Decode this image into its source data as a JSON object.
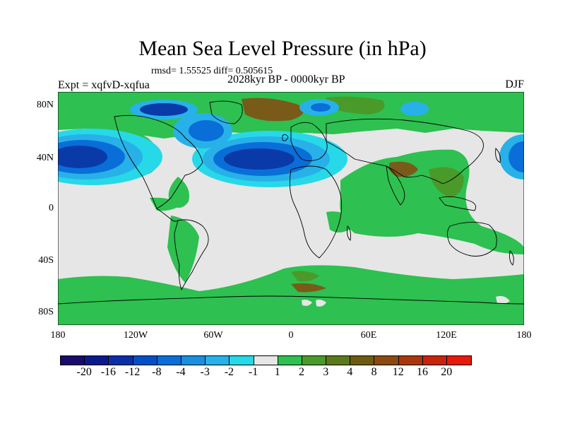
{
  "header": {
    "title": "Mean Sea Level Pressure (in hPa)",
    "stats": "rmsd= 1.55525 diff= 0.505615",
    "experiment": "Expt = xqfvD-xqfua",
    "period": "2028kyr BP - 0000kyr BP",
    "season": "DJF"
  },
  "axes": {
    "lat_labels": [
      "80N",
      "40N",
      "0",
      "40S",
      "80S"
    ],
    "lon_labels": [
      "180",
      "120W",
      "60W",
      "0",
      "60E",
      "120E",
      "180"
    ]
  },
  "colorbar": {
    "colors": [
      "#1a0a6b",
      "#0a1a8a",
      "#0a2fa8",
      "#0050c8",
      "#0a6ed8",
      "#1a8fe0",
      "#27b1e8",
      "#26d8e8",
      "#e6e6e6",
      "#2ec050",
      "#4a9a2a",
      "#5a7a1a",
      "#6e5a10",
      "#8a4a10",
      "#a8380c",
      "#c8240a",
      "#e61a0a"
    ],
    "labels": [
      "-20",
      "-16",
      "-12",
      "-8",
      "-4",
      "-3",
      "-2",
      "-1",
      "1",
      "2",
      "3",
      "4",
      "8",
      "12",
      "16",
      "20"
    ]
  },
  "map_colors": {
    "neutral": "#e6e6e6",
    "green": "#2ec050",
    "olive": "#4a9a2a",
    "brown": "#7a5a18",
    "blue_dark": "#0a3aa8",
    "blue_mid": "#0a6ed8",
    "blue_light": "#27b1e8",
    "cyan": "#26d8e8",
    "coast": "#000000"
  }
}
